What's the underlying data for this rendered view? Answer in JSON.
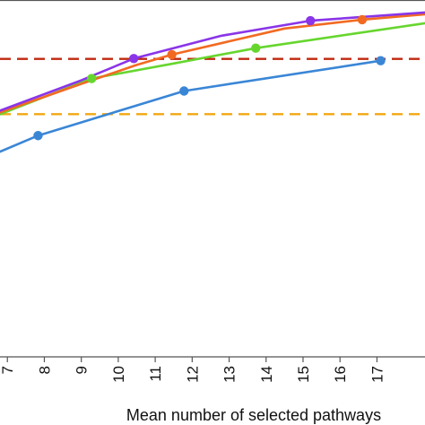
{
  "chart_data": {
    "type": "line",
    "title": "",
    "xlabel": "Mean number of selected pathways",
    "ylabel": "",
    "xlim": [
      6.8,
      18.3
    ],
    "ylim": [
      0.0,
      1.0
    ],
    "x_ticks": [
      7,
      8,
      9,
      10,
      11,
      12,
      13,
      14,
      15,
      16,
      17
    ],
    "tick_labels": [
      "7",
      "8",
      "9",
      "10",
      "11",
      "12",
      "13",
      "14",
      "15",
      "16",
      "17"
    ],
    "grid": false,
    "series": [
      {
        "color": "#3a86d6",
        "marker_values": [
          [
            7.83,
            0.62
          ],
          [
            11.78,
            0.745
          ],
          [
            17.1,
            0.83
          ]
        ],
        "values": [
          [
            6.8,
            0.575
          ],
          [
            7.83,
            0.62
          ],
          [
            11.78,
            0.745
          ],
          [
            17.1,
            0.83
          ]
        ]
      },
      {
        "color": "#66d62e",
        "marker_values": [
          [
            9.28,
            0.78
          ],
          [
            13.72,
            0.865
          ]
        ],
        "values": [
          [
            6.8,
            0.68
          ],
          [
            9.28,
            0.78
          ],
          [
            11.5,
            0.822
          ],
          [
            13.72,
            0.865
          ],
          [
            18.3,
            0.935
          ]
        ]
      },
      {
        "color": "#f26a22",
        "marker_values": [
          [
            11.45,
            0.847
          ],
          [
            16.6,
            0.945
          ]
        ],
        "values": [
          [
            6.8,
            0.685
          ],
          [
            9.0,
            0.765
          ],
          [
            10.5,
            0.818
          ],
          [
            11.45,
            0.847
          ],
          [
            14.5,
            0.92
          ],
          [
            16.6,
            0.945
          ],
          [
            18.3,
            0.96
          ]
        ]
      },
      {
        "color": "#8a35e8",
        "marker_values": [
          [
            10.42,
            0.836
          ],
          [
            15.2,
            0.942
          ]
        ],
        "values": [
          [
            6.8,
            0.69
          ],
          [
            9.0,
            0.775
          ],
          [
            10.42,
            0.836
          ],
          [
            12.8,
            0.9
          ],
          [
            15.2,
            0.942
          ],
          [
            18.3,
            0.965
          ]
        ]
      }
    ],
    "reference_lines": [
      {
        "y": 0.835,
        "color": "#c0280f",
        "style": "dashed"
      },
      {
        "y": 0.68,
        "color": "#f2a712",
        "style": "dashed"
      }
    ]
  }
}
